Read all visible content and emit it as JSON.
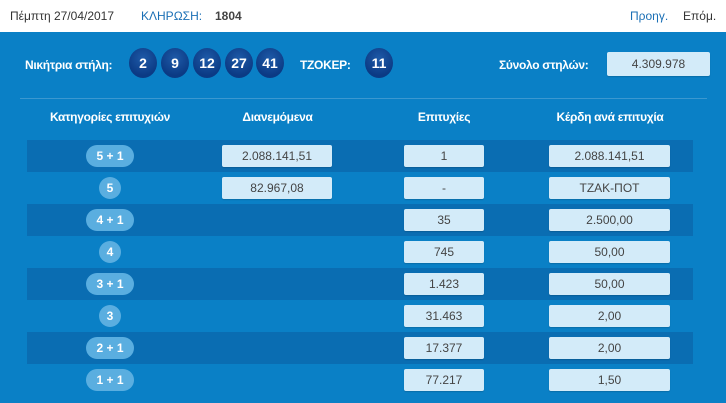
{
  "header": {
    "date": "Πέμπτη 27/04/2017",
    "draw_label": "ΚΛΗΡΩΣΗ:",
    "draw_number": "1804",
    "prev": "Προηγ.",
    "next": "Επόμ."
  },
  "winning": {
    "label": "Νικήτρια στήλη:",
    "numbers": [
      "2",
      "9",
      "12",
      "27",
      "41"
    ],
    "joker_label": "ΤΖΟΚΕΡ:",
    "joker": "11",
    "total_label": "Σύνολο στηλών:",
    "total": "4.309.978"
  },
  "table": {
    "headers": [
      "Κατηγορίες επιτυχιών",
      "Διανεμόμενα",
      "Επιτυχίες",
      "Κέρδη ανά επιτυχία"
    ],
    "rows": [
      {
        "category": "5 + 1",
        "distributed": "2.088.141,51",
        "winners": "1",
        "prize": "2.088.141,51"
      },
      {
        "category": "5",
        "distributed": "82.967,08",
        "winners": "-",
        "prize": "ΤΖΑΚ-ΠΟΤ"
      },
      {
        "category": "4 + 1",
        "distributed": null,
        "winners": "35",
        "prize": "2.500,00"
      },
      {
        "category": "4",
        "distributed": null,
        "winners": "745",
        "prize": "50,00"
      },
      {
        "category": "3 + 1",
        "distributed": null,
        "winners": "1.423",
        "prize": "50,00"
      },
      {
        "category": "3",
        "distributed": null,
        "winners": "31.463",
        "prize": "2,00"
      },
      {
        "category": "2 + 1",
        "distributed": null,
        "winners": "17.377",
        "prize": "2,00"
      },
      {
        "category": "1 + 1",
        "distributed": null,
        "winners": "77.217",
        "prize": "1,50"
      }
    ]
  },
  "colors": {
    "panel": "#0a80c6",
    "row_dark": "#0a6db2",
    "ball": "#0b3a84",
    "box": "#d3ebf9",
    "link": "#1a6fb5"
  }
}
